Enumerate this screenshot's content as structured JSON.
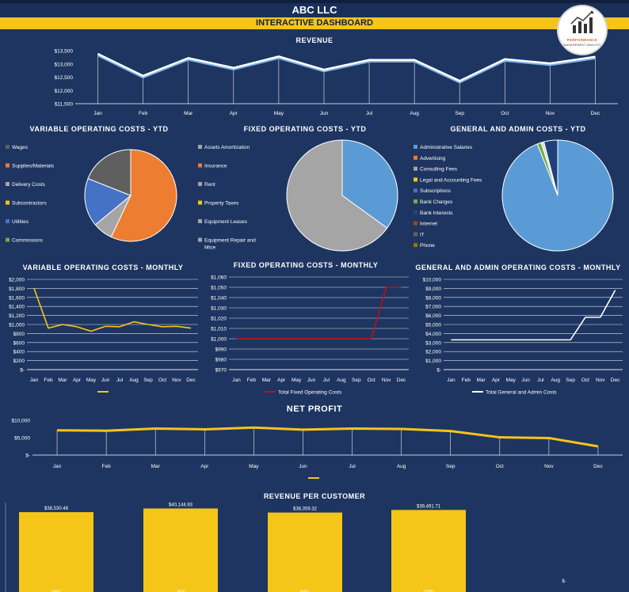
{
  "header": {
    "title": "ABC LLC",
    "subtitle": "INTERACTIVE DASHBOARD",
    "logo_text_line1": "PERFORMANCE",
    "logo_text_line2": "MANAGEMENT ANALYST"
  },
  "colors": {
    "background": "#1e3561",
    "accent": "#f5c518",
    "line_white": "#ffffff",
    "line_red": "#c0101a",
    "orange": "#ed7d31",
    "gray": "#a5a5a5",
    "blue": "#4472c4",
    "dark_gray": "#5f5f5f",
    "light_blue": "#5b9bd5",
    "green": "#70ad47"
  },
  "chart_data": [
    {
      "id": "revenue",
      "type": "line",
      "title": "REVENUE",
      "categories": [
        "Jan",
        "Feb",
        "Mar",
        "Apr",
        "May",
        "Jun",
        "Jul",
        "Aug",
        "Sep",
        "Oct",
        "Nov",
        "Dec"
      ],
      "series": [
        {
          "values": [
            13380,
            12550,
            13220,
            12850,
            13280,
            12780,
            13150,
            13150,
            12360,
            13180,
            13020,
            13270
          ]
        }
      ],
      "ylim": [
        11500,
        13500
      ],
      "yticks": [
        "$11,500",
        "$12,000",
        "$12,500",
        "$13,000",
        "$13,500"
      ],
      "ytick_values": [
        11500,
        12000,
        12500,
        13000,
        13500
      ]
    },
    {
      "id": "var_ytd",
      "type": "pie",
      "title": "VARIABLE OPERATING COSTS - YTD",
      "legend": [
        "Wages",
        "Supplies/Materials",
        "Delivery Costs",
        "Subcontractors",
        "Utilities",
        "Commissions"
      ],
      "slices": [
        {
          "label": "Supplies/Materials",
          "value": 57,
          "color": "#ed7d31"
        },
        {
          "label": "Delivery Costs",
          "value": 7,
          "color": "#a5a5a5"
        },
        {
          "label": "Subcontractors",
          "value": 17,
          "color": "#4472c4"
        },
        {
          "label": "Wages",
          "value": 19,
          "color": "#5f5f5f"
        }
      ],
      "legend_colors": [
        "#5f5f5f",
        "#ed7d31",
        "#a5a5a5",
        "#f5c518",
        "#4472c4",
        "#70ad47"
      ]
    },
    {
      "id": "fixed_ytd",
      "type": "pie",
      "title": "FIXED OPERATING COSTS - YTD",
      "legend": [
        "Assets Amortization",
        "Insurance",
        "Rent",
        "Property Taxes",
        "Equipment Leases",
        "Equipment Repair and Mtce"
      ],
      "slices": [
        {
          "label": "Assets Amortization",
          "value": 35,
          "color": "#5b9bd5"
        },
        {
          "label": "Rent",
          "value": 65,
          "color": "#a5a5a5"
        }
      ],
      "legend_colors": [
        "#a5a5a5",
        "#ed7d31",
        "#a5a5a5",
        "#f5c518",
        "#a5a5a5",
        "#a5a5a5"
      ]
    },
    {
      "id": "ga_ytd",
      "type": "pie",
      "title": "GENERAL AND ADMIN COSTS - YTD",
      "legend": [
        "Administrative Salaries",
        "Advertising",
        "Consulting Fees",
        "Legal and Accounting Fees",
        "Subscriptions",
        "Bank Charges",
        "Bank Interests",
        "Internet",
        "IT",
        "Phone"
      ],
      "slices": [
        {
          "label": "Administrative Salaries",
          "value": 94,
          "color": "#5b9bd5"
        },
        {
          "label": "Bank Charges",
          "value": 1.2,
          "color": "#70ad47"
        },
        {
          "label": "Legal and Accounting Fees",
          "value": 0.8,
          "color": "#dddddd"
        },
        {
          "label": "Subscriptions",
          "value": 4,
          "color": "#1f3f7a"
        }
      ],
      "legend_colors": [
        "#5b9bd5",
        "#ed7d31",
        "#a5a5a5",
        "#f5c518",
        "#4472c4",
        "#70ad47",
        "#264478",
        "#9e480e",
        "#636363",
        "#997300"
      ]
    },
    {
      "id": "var_monthly",
      "type": "line",
      "title": "VARIABLE OPERATING COSTS - MONTHLY",
      "categories": [
        "Jan",
        "Feb",
        "Mar",
        "Apr",
        "May",
        "Jun",
        "Jul",
        "Aug",
        "Sep",
        "Oct",
        "Nov",
        "Dec"
      ],
      "series": [
        {
          "name": "",
          "values": [
            1800,
            920,
            1000,
            950,
            850,
            960,
            950,
            1060,
            1000,
            950,
            960,
            920
          ]
        }
      ],
      "ylim": [
        0,
        2000
      ],
      "yticks": [
        "$-",
        "$200",
        "$400",
        "$600",
        "$800",
        "$1,000",
        "$1,200",
        "$1,400",
        "$1,600",
        "$1,800",
        "$2,000"
      ],
      "ytick_values": [
        0,
        200,
        400,
        600,
        800,
        1000,
        1200,
        1400,
        1600,
        1800,
        2000
      ]
    },
    {
      "id": "fixed_monthly",
      "type": "line",
      "title": "FIXED OPERATING COSTS - MONTHLY",
      "categories": [
        "Jan",
        "Feb",
        "Mar",
        "Apr",
        "May",
        "Jun",
        "Jul",
        "Aug",
        "Sep",
        "Oct",
        "Nov",
        "Dec"
      ],
      "series": [
        {
          "name": "Total Fixed Operating Costs",
          "values": [
            1000,
            1000,
            1000,
            1000,
            1000,
            1000,
            1000,
            1000,
            1000,
            1000,
            1050,
            1050
          ]
        }
      ],
      "ylim": [
        970,
        1060
      ],
      "yticks": [
        "$970",
        "$980",
        "$990",
        "$1,000",
        "$1,010",
        "$1,020",
        "$1,030",
        "$1,040",
        "$1,050",
        "$1,060"
      ],
      "ytick_values": [
        970,
        980,
        990,
        1000,
        1010,
        1020,
        1030,
        1040,
        1050,
        1060
      ]
    },
    {
      "id": "ga_monthly",
      "type": "line",
      "title": "GENERAL AND ADMIN OPERATING COSTS - MONTHLY",
      "categories": [
        "Jan",
        "Feb",
        "Mar",
        "Apr",
        "May",
        "Jun",
        "Jul",
        "Aug",
        "Sep",
        "Oct",
        "Nov",
        "Dec"
      ],
      "series": [
        {
          "name": "Total General and Admin Costs",
          "values": [
            3300,
            3300,
            3300,
            3300,
            3300,
            3300,
            3300,
            3300,
            3300,
            5800,
            5800,
            8800
          ]
        }
      ],
      "ylim": [
        0,
        10000
      ],
      "yticks": [
        "$-",
        "$1,000",
        "$2,000",
        "$3,000",
        "$4,000",
        "$5,000",
        "$6,000",
        "$7,000",
        "$8,000",
        "$9,000",
        "$10,000"
      ],
      "ytick_values": [
        0,
        1000,
        2000,
        3000,
        4000,
        5000,
        6000,
        7000,
        8000,
        9000,
        10000
      ]
    },
    {
      "id": "net_profit",
      "type": "line",
      "title": "NET PROFIT",
      "categories": [
        "Jan",
        "Feb",
        "Mar",
        "Apr",
        "May",
        "Jun",
        "Jul",
        "Aug",
        "Sep",
        "Oct",
        "Nov",
        "Dec"
      ],
      "series": [
        {
          "name": "",
          "values": [
            7100,
            7000,
            7600,
            7400,
            7900,
            7300,
            7600,
            7500,
            6900,
            5100,
            4900,
            2500
          ]
        }
      ],
      "ylim": [
        0,
        10000
      ],
      "yticks": [
        "$-",
        "$5,000",
        "$10,000"
      ],
      "ytick_values": [
        0,
        5000,
        10000
      ]
    },
    {
      "id": "rev_customer",
      "type": "bar",
      "title": "REVENUE PER CUSTOMER",
      "categories": [
        "ABC",
        "JKF",
        "NPL",
        "OPF"
      ],
      "values": [
        38530.48,
        40144.93,
        38359.32,
        39491.71
      ],
      "value_labels": [
        "$38,530.48",
        "$40,144.93",
        "$38,359.32",
        "$39,491.71"
      ],
      "empty_label": "$-"
    }
  ]
}
